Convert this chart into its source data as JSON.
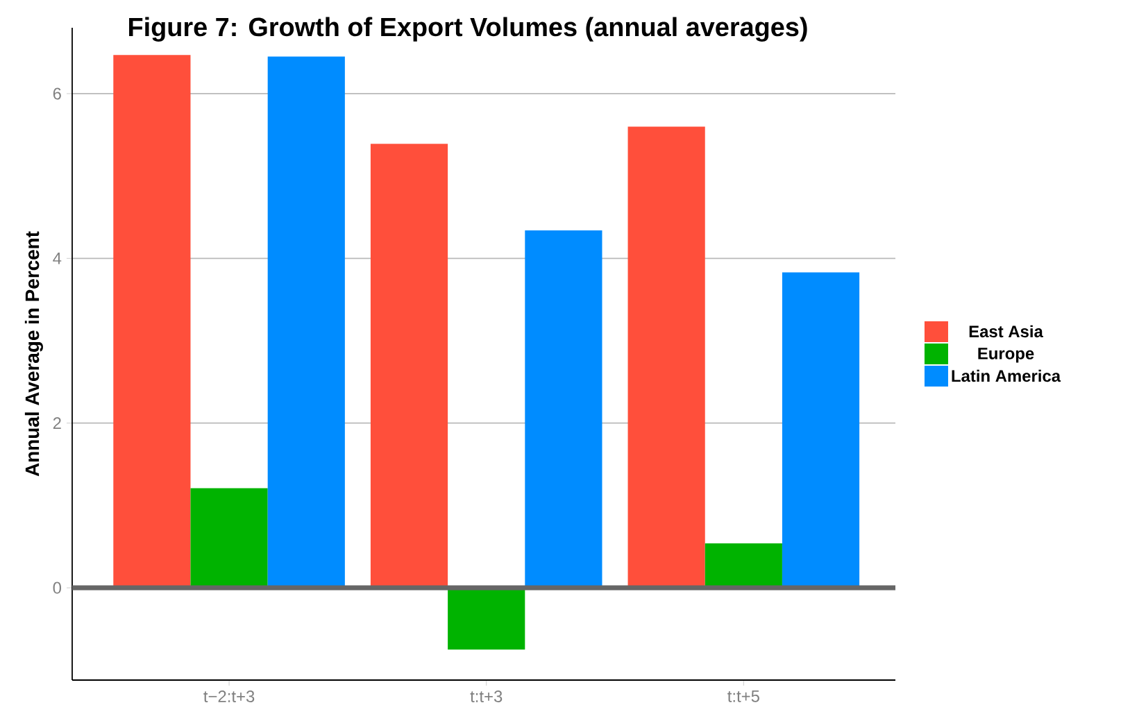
{
  "chart_data": {
    "type": "bar",
    "title": "Figure 7: Growth of Export Volumes (annual averages)",
    "ylabel": "Annual Average in Percent",
    "categories": [
      "t−2:t+3",
      "t:t+3",
      "t:t+5"
    ],
    "series": [
      {
        "name": "East Asia",
        "color": "#ff4f3b",
        "values": [
          6.47,
          5.39,
          5.6
        ]
      },
      {
        "name": "Europe",
        "color": "#00b300",
        "values": [
          1.21,
          -0.75,
          0.54
        ]
      },
      {
        "name": "Latin America",
        "color": "#008cff",
        "values": [
          6.45,
          4.34,
          3.83
        ]
      }
    ],
    "ylim": [
      -1.12,
      6.8
    ],
    "yticks": [
      0,
      2,
      4,
      6
    ],
    "grid": "y",
    "legend": "right",
    "ref_lines": [
      {
        "axis": "y",
        "value": 0,
        "color": "#666666"
      }
    ]
  }
}
